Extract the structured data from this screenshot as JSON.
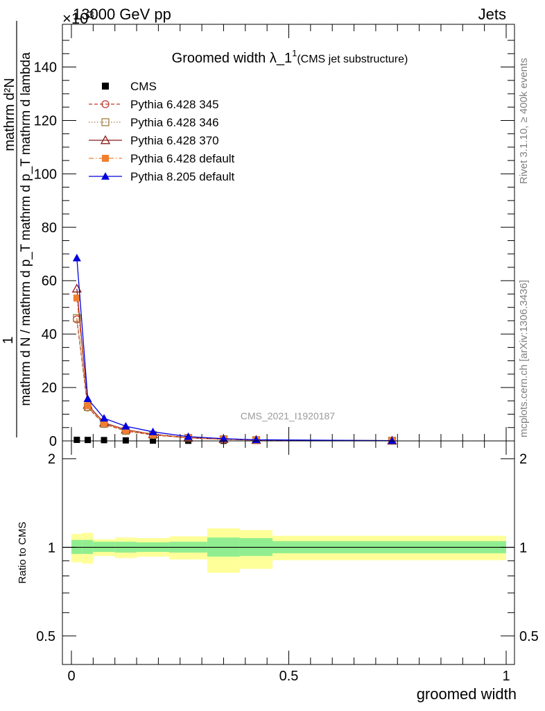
{
  "header": {
    "energy": "13000 GeV pp",
    "category": "Jets",
    "exponent": "×10",
    "exponent_power": "3"
  },
  "side_labels": {
    "rivet": "Rivet 3.1.10, ≥ 400k events",
    "mcplots": "mcplots.cern.ch [arXiv:1306.3436]"
  },
  "watermark": "CMS_2021_I1920187",
  "chart_data": [
    {
      "type": "line",
      "title": "Groomed width",
      "title_symbol": "λ_1",
      "title_superscript": "1",
      "subtitle": "(CMS jet substructure)",
      "ylabel_numerator": "mathrm d²N",
      "ylabel_denominator": "mathrm d N / mathrm d p_T mathrm d p_T mathrm d lambda",
      "ylabel_prefix": "1",
      "xlim": [
        0,
        1
      ],
      "ylim": [
        0,
        156
      ],
      "y_ticks": [
        0,
        20,
        40,
        60,
        80,
        100,
        120,
        140
      ],
      "y_tick_labels": [
        "0",
        "20",
        "40",
        "60",
        "80",
        "100",
        "120",
        "140"
      ],
      "legend_position": "top-left",
      "series": [
        {
          "name": "CMS",
          "style": "square-filled",
          "color": "#000000",
          "x": [
            0.0125,
            0.0375,
            0.075,
            0.125,
            0.1875,
            0.2688,
            0.35,
            0.425,
            0.7375
          ],
          "y": [
            0.4,
            0.35,
            0.3,
            0.2,
            0.12,
            0.06,
            0.04,
            0.02,
            0.005
          ]
        },
        {
          "name": "Pythia 6.428 345",
          "style": "circle-open-dashed",
          "color": "#c0392b",
          "x": [
            0.0125,
            0.0375,
            0.075,
            0.125,
            0.1875,
            0.2688,
            0.35,
            0.425,
            0.7375
          ],
          "y": [
            45.5,
            12.5,
            6.3,
            3.7,
            2.2,
            1.1,
            0.6,
            0.3,
            0.08
          ]
        },
        {
          "name": "Pythia 6.428 346",
          "style": "square-open-dotted",
          "color": "#a08040",
          "x": [
            0.0125,
            0.0375,
            0.075,
            0.125,
            0.1875,
            0.2688,
            0.35,
            0.425,
            0.7375
          ],
          "y": [
            46.0,
            12.7,
            6.4,
            3.8,
            2.25,
            1.12,
            0.62,
            0.32,
            0.08
          ]
        },
        {
          "name": "Pythia 6.428 370",
          "style": "triangle-open-solid",
          "color": "#8b1a1a",
          "x": [
            0.0125,
            0.0375,
            0.075,
            0.125,
            0.1875,
            0.2688,
            0.35,
            0.425,
            0.7375
          ],
          "y": [
            57.0,
            13.5,
            6.8,
            4.2,
            2.5,
            1.2,
            0.65,
            0.33,
            0.08
          ]
        },
        {
          "name": "Pythia 6.428 default",
          "style": "square-filled-dashdot",
          "color": "#f07f30",
          "x": [
            0.0125,
            0.0375,
            0.075,
            0.125,
            0.1875,
            0.2688,
            0.35,
            0.425,
            0.7375
          ],
          "y": [
            53.5,
            13.2,
            6.6,
            4.0,
            2.4,
            1.15,
            0.63,
            0.32,
            0.08
          ]
        },
        {
          "name": "Pythia 8.205 default",
          "style": "triangle-filled-solid",
          "color": "#0000dd",
          "x": [
            0.0125,
            0.0375,
            0.075,
            0.125,
            0.1875,
            0.2688,
            0.35,
            0.425,
            0.7375
          ],
          "y": [
            68.5,
            15.8,
            8.5,
            5.5,
            3.4,
            1.6,
            0.85,
            0.42,
            0.1
          ]
        }
      ]
    },
    {
      "type": "area",
      "ylabel": "Ratio to CMS",
      "xlabel": "groomed width",
      "xlim": [
        0,
        1
      ],
      "ylim": [
        0.4,
        2.3
      ],
      "log_y": true,
      "y_ticks": [
        0.5,
        1,
        2
      ],
      "y_tick_labels": [
        "0.5",
        "1",
        "2"
      ],
      "x_ticks": [
        0,
        0.5,
        1
      ],
      "x_tick_labels": [
        "0",
        "0.5",
        "1"
      ],
      "reference_line": 1,
      "band_colors": {
        "inner": "#90ee90",
        "outer": "#ffff99"
      },
      "bins": [
        {
          "x_low": 0.0,
          "x_high": 0.025,
          "inner": [
            0.95,
            1.06
          ],
          "outer": [
            0.89,
            1.11
          ]
        },
        {
          "x_low": 0.025,
          "x_high": 0.05,
          "inner": [
            0.95,
            1.06
          ],
          "outer": [
            0.88,
            1.12
          ]
        },
        {
          "x_low": 0.05,
          "x_high": 0.1,
          "inner": [
            0.965,
            1.045
          ],
          "outer": [
            0.935,
            1.065
          ]
        },
        {
          "x_low": 0.1,
          "x_high": 0.15,
          "inner": [
            0.96,
            1.045
          ],
          "outer": [
            0.92,
            1.08
          ]
        },
        {
          "x_low": 0.15,
          "x_high": 0.225,
          "inner": [
            0.965,
            1.04
          ],
          "outer": [
            0.93,
            1.075
          ]
        },
        {
          "x_low": 0.225,
          "x_high": 0.3125,
          "inner": [
            0.96,
            1.045
          ],
          "outer": [
            0.91,
            1.09
          ]
        },
        {
          "x_low": 0.3125,
          "x_high": 0.3875,
          "inner": [
            0.93,
            1.08
          ],
          "outer": [
            0.82,
            1.16
          ]
        },
        {
          "x_low": 0.3875,
          "x_high": 0.4625,
          "inner": [
            0.935,
            1.075
          ],
          "outer": [
            0.845,
            1.145
          ]
        },
        {
          "x_low": 0.4625,
          "x_high": 1.0,
          "inner": [
            0.955,
            1.05
          ],
          "outer": [
            0.905,
            1.095
          ]
        }
      ]
    }
  ]
}
